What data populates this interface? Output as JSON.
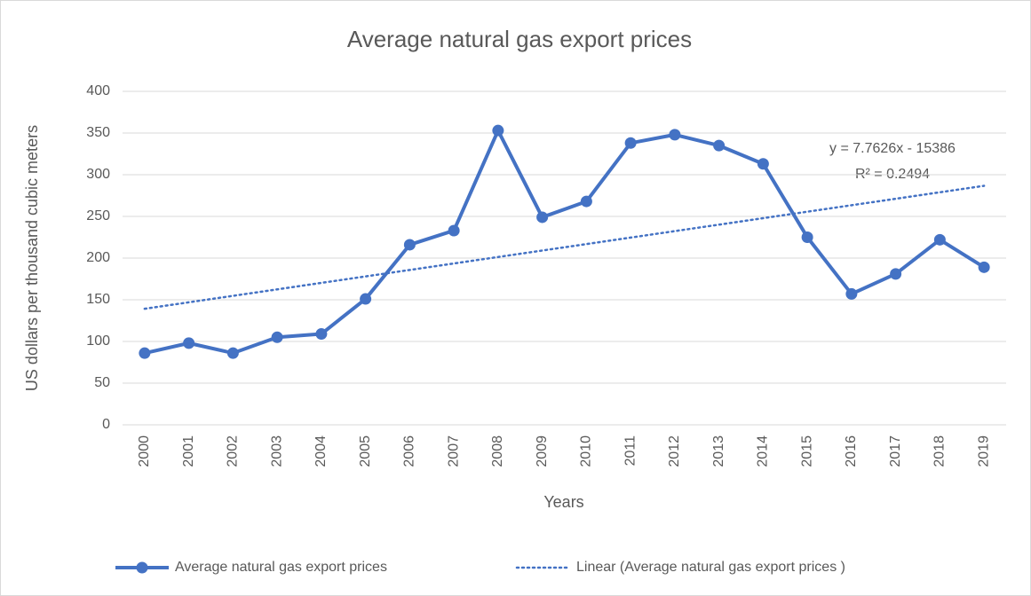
{
  "chart_data": {
    "type": "line",
    "title": "Average natural gas export prices",
    "x_label": "Years",
    "y_label": "US dollars per thousand cubic meters",
    "categories": [
      "2000",
      "2001",
      "2002",
      "2003",
      "2004",
      "2005",
      "2006",
      "2007",
      "2008",
      "2009",
      "2010",
      "2011",
      "2012",
      "2013",
      "2014",
      "2015",
      "2016",
      "2017",
      "2018",
      "2019"
    ],
    "series": [
      {
        "name": "Average natural gas export prices",
        "color": "#4472c4",
        "values": [
          86,
          98,
          86,
          105,
          109,
          151,
          216,
          233,
          353,
          249,
          268,
          338,
          348,
          335,
          313,
          225,
          157,
          181,
          222,
          189
        ]
      }
    ],
    "trendline": {
      "name": "Linear (Average natural gas export prices )",
      "color": "#4472c4",
      "slope": 7.7626,
      "intercept": -15386,
      "equation": "y = 7.7626x - 15386",
      "r_squared": "R² = 0.2494"
    },
    "ylim": [
      0,
      400
    ],
    "yticks": [
      0,
      50,
      100,
      150,
      200,
      250,
      300,
      350,
      400
    ],
    "grid": true,
    "legend": "bottom"
  }
}
